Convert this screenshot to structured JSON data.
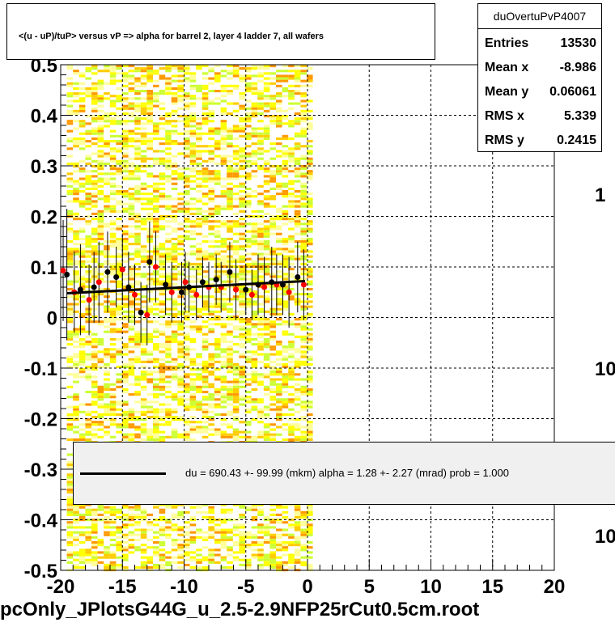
{
  "title": "<(u - uP)/tuP> versus   vP => alpha for barrel 2, layer 4 ladder 7, all wafers",
  "stats": {
    "name": "duOvertuPvP4007",
    "rows": [
      {
        "label": "Entries",
        "value": "13530"
      },
      {
        "label": "Mean x",
        "value": "-8.986"
      },
      {
        "label": "Mean y",
        "value": "0.06061"
      },
      {
        "label": "RMS x",
        "value": "5.339"
      },
      {
        "label": "RMS y",
        "value": "0.2415"
      }
    ]
  },
  "fit_text": "du =  690.43 +- 99.99 (mkm) alpha =    1.28 +-  2.27 (mrad) prob = 1.000",
  "footer": "pcOnly_JPlotsG44G_u_2.5-2.9NFP25rCut0.5cm.root",
  "colors": {
    "frame": "#000000",
    "grid": "#000000",
    "points_black": "#000000",
    "points_red": "#ff0000",
    "fit_line": "#000000"
  },
  "chart_data": {
    "type": "scatter",
    "xlim": [
      -20,
      20
    ],
    "ylim": [
      -0.5,
      0.5
    ],
    "x_ticks": [
      "-20",
      "-15",
      "-10",
      "-5",
      "0",
      "5",
      "10",
      "15",
      "20"
    ],
    "y_ticks": [
      "-0.5",
      "-0.4",
      "-0.3",
      "-0.2",
      "-0.1",
      "0",
      "0.1",
      "0.2",
      "0.3",
      "0.4",
      "0.5"
    ],
    "grid": true,
    "colorbar_labels": [
      "1",
      "10",
      "10"
    ],
    "series": [
      {
        "color": "black",
        "points": [
          {
            "x": -19.5,
            "y": 0.085,
            "err": 0.13
          },
          {
            "x": -18.4,
            "y": 0.055,
            "err": 0.09
          },
          {
            "x": -17.3,
            "y": 0.06,
            "err": 0.07
          },
          {
            "x": -16.2,
            "y": 0.09,
            "err": 0.08
          },
          {
            "x": -15.5,
            "y": 0.08,
            "err": 0.06
          },
          {
            "x": -14.5,
            "y": 0.06,
            "err": 0.07
          },
          {
            "x": -13.5,
            "y": 0.01,
            "err": 0.06
          },
          {
            "x": -12.8,
            "y": 0.11,
            "err": 0.08
          },
          {
            "x": -11.5,
            "y": 0.065,
            "err": 0.06
          },
          {
            "x": -10.2,
            "y": 0.05,
            "err": 0.06
          },
          {
            "x": -9.6,
            "y": 0.06,
            "err": 0.05
          },
          {
            "x": -8.5,
            "y": 0.07,
            "err": 0.05
          },
          {
            "x": -7.4,
            "y": 0.075,
            "err": 0.05
          },
          {
            "x": -6.3,
            "y": 0.09,
            "err": 0.06
          },
          {
            "x": -5.0,
            "y": 0.055,
            "err": 0.05
          },
          {
            "x": -4.0,
            "y": 0.065,
            "err": 0.06
          },
          {
            "x": -2.9,
            "y": 0.07,
            "err": 0.07
          },
          {
            "x": -2.0,
            "y": 0.065,
            "err": 0.06
          },
          {
            "x": -0.8,
            "y": 0.08,
            "err": 0.07
          }
        ]
      },
      {
        "color": "red",
        "points": [
          {
            "x": -19.8,
            "y": 0.093,
            "err": 0.1
          },
          {
            "x": -18.9,
            "y": 0.05,
            "err": 0.08
          },
          {
            "x": -17.7,
            "y": 0.035,
            "err": 0.07
          },
          {
            "x": -16.9,
            "y": 0.07,
            "err": 0.08
          },
          {
            "x": -15.0,
            "y": 0.095,
            "err": 0.07
          },
          {
            "x": -14.0,
            "y": 0.045,
            "err": 0.06
          },
          {
            "x": -13.0,
            "y": 0.005,
            "err": 0.06
          },
          {
            "x": -12.3,
            "y": 0.1,
            "err": 0.07
          },
          {
            "x": -11.0,
            "y": 0.05,
            "err": 0.06
          },
          {
            "x": -9.9,
            "y": 0.07,
            "err": 0.06
          },
          {
            "x": -9.0,
            "y": 0.045,
            "err": 0.05
          },
          {
            "x": -8.0,
            "y": 0.06,
            "err": 0.05
          },
          {
            "x": -7.0,
            "y": 0.06,
            "err": 0.05
          },
          {
            "x": -5.8,
            "y": 0.055,
            "err": 0.06
          },
          {
            "x": -4.5,
            "y": 0.045,
            "err": 0.05
          },
          {
            "x": -3.5,
            "y": 0.06,
            "err": 0.06
          },
          {
            "x": -2.5,
            "y": 0.065,
            "err": 0.06
          },
          {
            "x": -1.5,
            "y": 0.05,
            "err": 0.07
          },
          {
            "x": -0.3,
            "y": 0.065,
            "err": 0.07
          }
        ]
      }
    ],
    "fit_line": {
      "x": [
        -19.5,
        -0.2
      ],
      "y": [
        0.048,
        0.072
      ]
    }
  }
}
